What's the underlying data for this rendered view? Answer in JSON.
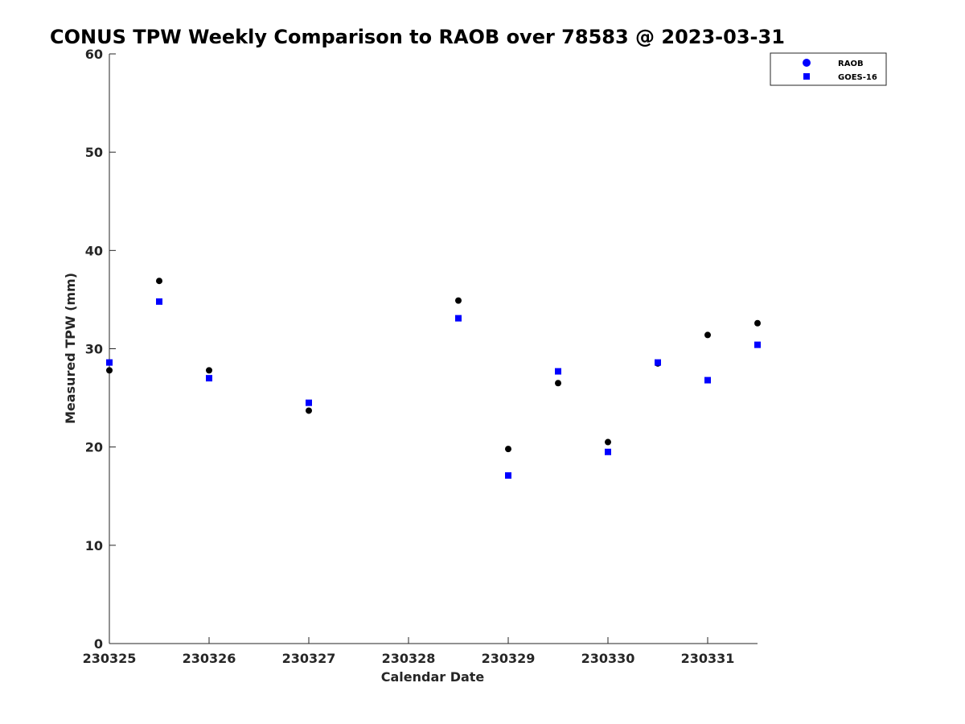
{
  "chart_data": {
    "type": "scatter",
    "title": "CONUS TPW Weekly Comparison to RAOB over 78583 @ 2023-03-31",
    "xlabel": "Calendar Date",
    "ylabel": "Measured TPW (mm)",
    "xlim": [
      0,
      6.5
    ],
    "ylim": [
      0,
      60
    ],
    "x_ticks": [
      0,
      1,
      2,
      3,
      4,
      5,
      6
    ],
    "x_tick_labels": [
      "230325",
      "230326",
      "230327",
      "230328",
      "230329",
      "230330",
      "230331"
    ],
    "y_ticks": [
      0,
      10,
      20,
      30,
      40,
      50,
      60
    ],
    "y_tick_labels": [
      "0",
      "10",
      "20",
      "30",
      "40",
      "50",
      "60"
    ],
    "grid": false,
    "legend_position": "top-right",
    "series": [
      {
        "name": "RAOB",
        "marker": "circle",
        "color": "#000000",
        "legend_color": "#0000ff",
        "x": [
          0,
          0.5,
          1,
          2,
          3.5,
          4,
          4.5,
          5,
          5.5,
          6,
          6.5
        ],
        "values": [
          27.8,
          36.9,
          27.8,
          23.7,
          34.9,
          19.8,
          26.5,
          20.5,
          28.5,
          31.4,
          32.6
        ]
      },
      {
        "name": "GOES-16",
        "marker": "square",
        "color": "#0000ff",
        "legend_color": "#0000ff",
        "x": [
          0,
          0.5,
          1,
          2,
          3.5,
          4,
          4.5,
          5,
          5.5,
          6,
          6.5
        ],
        "values": [
          28.6,
          34.8,
          27.0,
          24.5,
          33.1,
          17.1,
          27.7,
          19.5,
          28.6,
          26.8,
          30.4
        ]
      }
    ]
  }
}
